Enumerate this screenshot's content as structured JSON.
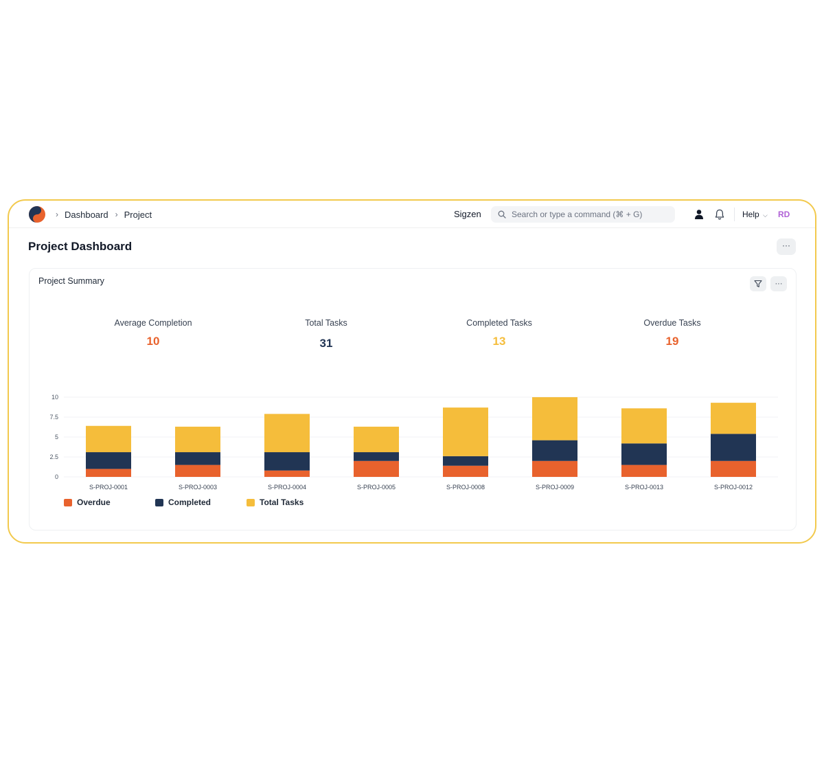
{
  "navbar": {
    "breadcrumbs": [
      "Dashboard",
      "Project"
    ],
    "site_name": "Sigzen",
    "search_placeholder": "Search or type a command (⌘ + G)",
    "help_label": "Help",
    "avatar_initials": "RD",
    "icons": [
      "frappe-logo-icon",
      "search-icon",
      "user-icon",
      "bell-icon",
      "chevron-down-icon"
    ]
  },
  "page": {
    "title": "Project Dashboard",
    "menu_label": "···"
  },
  "card": {
    "title": "Project Summary",
    "filter_icon": "filter-icon",
    "menu_label": "···"
  },
  "stats": [
    {
      "label": "Average Completion",
      "value": "10",
      "color": "#e8622d"
    },
    {
      "label": "Total Tasks",
      "value": "31",
      "color": "#213554"
    },
    {
      "label": "Completed Tasks",
      "value": "13",
      "color": "#f5bd3b"
    },
    {
      "label": "Overdue Tasks",
      "value": "19",
      "color": "#e8622d"
    }
  ],
  "chart_data": {
    "type": "bar",
    "stacked": true,
    "categories": [
      "S-PROJ-0001",
      "S-PROJ-0003",
      "S-PROJ-0004",
      "S-PROJ-0005",
      "S-PROJ-0008",
      "S-PROJ-0009",
      "S-PROJ-0013",
      "S-PROJ-0012"
    ],
    "series": [
      {
        "name": "Overdue",
        "color": "#e8622d",
        "values": [
          1,
          1.5,
          0.8,
          2,
          1.4,
          2,
          1.5,
          2
        ]
      },
      {
        "name": "Completed",
        "color": "#213554",
        "values": [
          2.1,
          1.6,
          2.3,
          1.1,
          1.2,
          2.6,
          2.7,
          3.4
        ]
      },
      {
        "name": "Total Tasks",
        "color": "#f5bd3b",
        "values": [
          3.3,
          3.2,
          4.8,
          3.2,
          6.1,
          5.4,
          4.4,
          3.9
        ]
      }
    ],
    "yticks": [
      "0",
      "2.5",
      "5",
      "7.5",
      "10"
    ],
    "ylim": [
      0,
      10
    ],
    "grid": true,
    "legend_position": "bottom-left"
  }
}
